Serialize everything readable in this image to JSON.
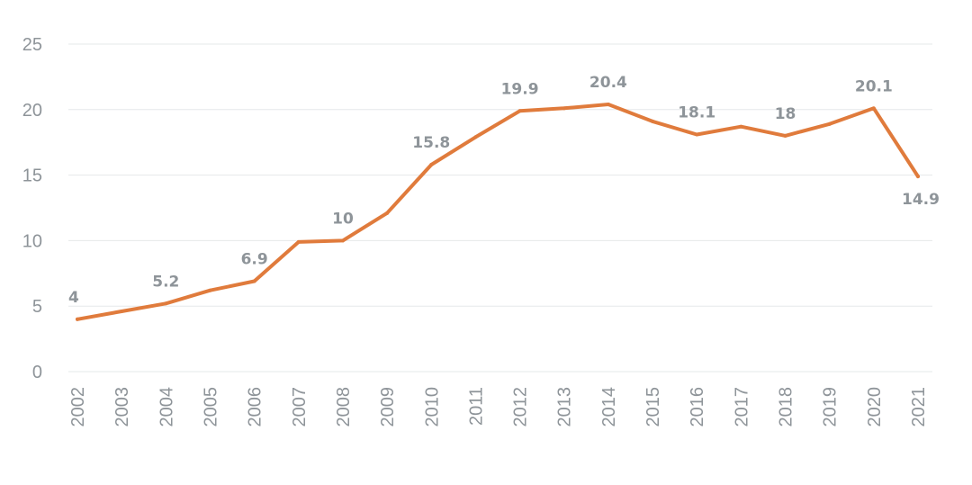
{
  "chart_data": {
    "type": "line",
    "x": [
      "2002",
      "2003",
      "2004",
      "2005",
      "2006",
      "2007",
      "2008",
      "2009",
      "2010",
      "2011",
      "2012",
      "2013",
      "2014",
      "2015",
      "2016",
      "2017",
      "2018",
      "2019",
      "2020",
      "2021"
    ],
    "series": [
      {
        "values": [
          4,
          4.6,
          5.2,
          6.2,
          6.9,
          9.9,
          10,
          12.1,
          15.8,
          17.9,
          19.9,
          20.1,
          20.4,
          19.1,
          18.1,
          18.7,
          18,
          18.9,
          20.1,
          14.9
        ],
        "color": "#e07b3c"
      }
    ],
    "data_labels": [
      {
        "index": 0,
        "text": "4"
      },
      {
        "index": 2,
        "text": "5.2"
      },
      {
        "index": 4,
        "text": "6.9"
      },
      {
        "index": 6,
        "text": "10"
      },
      {
        "index": 8,
        "text": "15.8"
      },
      {
        "index": 10,
        "text": "19.9"
      },
      {
        "index": 12,
        "text": "20.4"
      },
      {
        "index": 14,
        "text": "18.1"
      },
      {
        "index": 16,
        "text": "18"
      },
      {
        "index": 18,
        "text": "20.1"
      },
      {
        "index": 19,
        "text": "14.9"
      }
    ],
    "yticks": [
      "0",
      "5",
      "10",
      "15",
      "20",
      "25"
    ],
    "ylim": [
      0,
      25
    ],
    "grid": true,
    "legend": "none"
  }
}
